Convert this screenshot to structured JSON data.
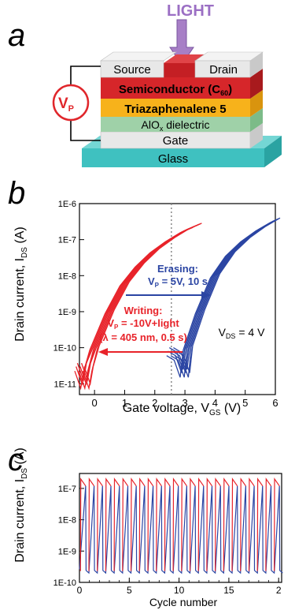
{
  "panel_a": {
    "label": "a",
    "light_label": "LIGHT",
    "source": "Source",
    "drain": "Drain",
    "semiconductor_main": "Semiconductor (C",
    "semiconductor_sub": "60",
    "semiconductor_close": ")",
    "triaza": "Triazaphenalene 5",
    "alox_main": "AlO",
    "alox_sub": "x",
    "alox_rest": " dielectric",
    "gate": "Gate",
    "glass": "Glass",
    "vp_main": "V",
    "vp_sub": "P",
    "colors": {
      "light_purple": "#a77fc6",
      "semiconductor": "#d6262a",
      "triaza": "#f7b21b",
      "dielectric": "#9fd1a8",
      "glass": "#3fc1c0",
      "electrode": "#e8e8e8",
      "vp_circle": "#e0262b"
    }
  },
  "panel_b": {
    "label": "b",
    "ylabel_main": "Drain current, I",
    "ylabel_sub": "DS",
    "ylabel_unit": " (A)",
    "xlabel_main": "Gate voltage, V",
    "xlabel_sub": "GS",
    "xlabel_unit": " (V)",
    "erasing_title": "Erasing:",
    "erasing_params_main": "V",
    "erasing_params_sub": "P",
    "erasing_params_rest": " = 5V, 10 s",
    "writing_title": "Writing:",
    "writing_params_main": "V",
    "writing_params_sub": "P",
    "writing_params_rest": " = -10V+light",
    "writing_lambda": "(λ = 405 nm, 0.5 s)",
    "vds_main": "V",
    "vds_sub": "DS",
    "vds_rest": " = 4 V",
    "colors": {
      "writing": "#e8232a",
      "erasing": "#2b45a3"
    }
  },
  "panel_c": {
    "label": "c",
    "ylabel_main": "Drain current, I",
    "ylabel_sub": "DS",
    "ylabel_unit": " (A)",
    "xlabel": "Cycle number"
  },
  "chart_data": [
    {
      "type": "line",
      "panel": "b",
      "x_ticks": [
        "0",
        "1",
        "2",
        "3",
        "4",
        "5",
        "6"
      ],
      "y_ticks": [
        "1E-11",
        "1E-10",
        "1E-9",
        "1E-8",
        "1E-7",
        "1E-6"
      ],
      "xlim": [
        -0.5,
        6
      ],
      "ylim": [
        5e-12,
        1e-06
      ],
      "y_scale": "log",
      "threshold_marker_x": 2.55,
      "series": [
        {
          "color": "#e8232a",
          "x": [
            -0.5,
            -0.3,
            -0.2,
            0.0,
            0.5,
            1.0,
            1.5,
            2.0,
            2.5,
            3.0,
            3.4
          ],
          "y": [
            3e-11,
            1e-11,
            3e-11,
            1e-10,
            1e-09,
            6e-09,
            2e-08,
            5e-08,
            1e-07,
            1.8e-07,
            2.5e-07
          ]
        },
        {
          "color": "#2b45a3",
          "x": [
            2.55,
            2.8,
            3.0,
            3.1,
            3.5,
            4.0,
            4.5,
            5.0,
            5.5,
            6.0
          ],
          "y": [
            8e-11,
            6e-11,
            2e-11,
            1e-10,
            1e-09,
            1e-08,
            4e-08,
            1e-07,
            2e-07,
            3.5e-07
          ]
        }
      ]
    },
    {
      "type": "line",
      "panel": "c",
      "x_ticks": [
        "0",
        "5",
        "10",
        "15",
        "2"
      ],
      "y_ticks": [
        "1E-10",
        "1E-9",
        "1E-8",
        "1E-7"
      ],
      "xlim": [
        0,
        20.3
      ],
      "ylim": [
        1e-10,
        3e-07
      ],
      "y_scale": "log",
      "cycles": 24,
      "series": [
        {
          "name": "",
          "color": "#e8232a",
          "high": 2e-07,
          "low_start": 1.2e-07
        },
        {
          "name": "",
          "color": "#2b45a3",
          "high": 1.6e-07,
          "low": 2e-10
        }
      ]
    }
  ]
}
